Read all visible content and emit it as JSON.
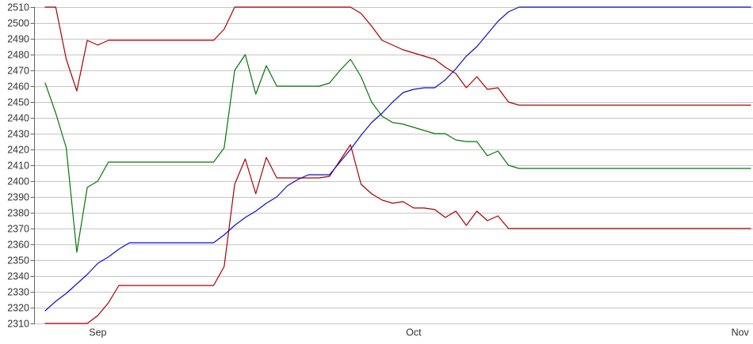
{
  "chart_data": {
    "type": "line",
    "title": "",
    "legend": "none",
    "grid": true,
    "x_axis": {
      "tick_labels": [
        "Sep",
        "Oct",
        "Nov"
      ],
      "tick_point_indices": [
        5,
        35,
        66
      ],
      "num_points": 68
    },
    "y_axis": {
      "min": 2310,
      "max": 2510,
      "tick_step": 10,
      "tick_labels": [
        "2510",
        "2500",
        "2490",
        "2480",
        "2470",
        "2460",
        "2450",
        "2440",
        "2430",
        "2420",
        "2410",
        "2400",
        "2390",
        "2380",
        "2370",
        "2360",
        "2350",
        "2340",
        "2330",
        "2320",
        "2310"
      ]
    },
    "colors": {
      "gridline": "#c5c5c5",
      "axis": "#666666",
      "tick_text": "#333333",
      "background": "#ffffff"
    },
    "series": [
      {
        "name": "upper-red",
        "color": "#aa0000",
        "values": [
          2510,
          2510,
          2477,
          2457,
          2489,
          2486,
          2489,
          2489,
          2489,
          2489,
          2489,
          2489,
          2489,
          2489,
          2489,
          2489,
          2489,
          2496,
          2510,
          2510,
          2510,
          2510,
          2510,
          2510,
          2510,
          2510,
          2510,
          2510,
          2510,
          2510,
          2506,
          2498,
          2489,
          2486,
          2483,
          2481,
          2479,
          2477,
          2472,
          2468,
          2459,
          2466,
          2458,
          2459,
          2450,
          2448,
          2448,
          2448,
          2448,
          2448,
          2448,
          2448,
          2448,
          2448,
          2448,
          2448,
          2448,
          2448,
          2448,
          2448,
          2448,
          2448,
          2448,
          2448,
          2448,
          2448,
          2448,
          2448
        ]
      },
      {
        "name": "green",
        "color": "#077507",
        "values": [
          2462,
          2443,
          2421,
          2355,
          2396,
          2400,
          2412,
          2412,
          2412,
          2412,
          2412,
          2412,
          2412,
          2412,
          2412,
          2412,
          2412,
          2421,
          2470,
          2480,
          2455,
          2473,
          2460,
          2460,
          2460,
          2460,
          2460,
          2462,
          2470,
          2477,
          2466,
          2450,
          2441,
          2437,
          2436,
          2434,
          2432,
          2430,
          2430,
          2426,
          2425,
          2425,
          2416,
          2419,
          2410,
          2408,
          2408,
          2408,
          2408,
          2408,
          2408,
          2408,
          2408,
          2408,
          2408,
          2408,
          2408,
          2408,
          2408,
          2408,
          2408,
          2408,
          2408,
          2408,
          2408,
          2408,
          2408,
          2408
        ]
      },
      {
        "name": "lower-red",
        "color": "#aa0000",
        "values": [
          2310,
          2310,
          2310,
          2310,
          2310,
          2315,
          2323,
          2334,
          2334,
          2334,
          2334,
          2334,
          2334,
          2334,
          2334,
          2334,
          2334,
          2346,
          2398,
          2414,
          2392,
          2415,
          2402,
          2402,
          2402,
          2402,
          2402,
          2403,
          2413,
          2423,
          2398,
          2392,
          2388,
          2386,
          2387,
          2383,
          2383,
          2382,
          2377,
          2381,
          2372,
          2381,
          2375,
          2378,
          2370,
          2370,
          2370,
          2370,
          2370,
          2370,
          2370,
          2370,
          2370,
          2370,
          2370,
          2370,
          2370,
          2370,
          2370,
          2370,
          2370,
          2370,
          2370,
          2370,
          2370,
          2370,
          2370,
          2370
        ]
      },
      {
        "name": "blue",
        "color": "#0f0fc8",
        "values": [
          2318,
          2324,
          2329,
          2335,
          2341,
          2348,
          2352,
          2357,
          2361,
          2361,
          2361,
          2361,
          2361,
          2361,
          2361,
          2361,
          2361,
          2366,
          2372,
          2377,
          2381,
          2386,
          2390,
          2397,
          2401,
          2404,
          2404,
          2404,
          2412,
          2420,
          2429,
          2437,
          2443,
          2450,
          2456,
          2458,
          2459,
          2459,
          2464,
          2471,
          2479,
          2485,
          2493,
          2501,
          2507,
          2510,
          2510,
          2510,
          2510,
          2510,
          2510,
          2510,
          2510,
          2510,
          2510,
          2510,
          2510,
          2510,
          2510,
          2510,
          2510,
          2510,
          2510,
          2510,
          2510,
          2510,
          2510,
          2510
        ]
      }
    ]
  }
}
